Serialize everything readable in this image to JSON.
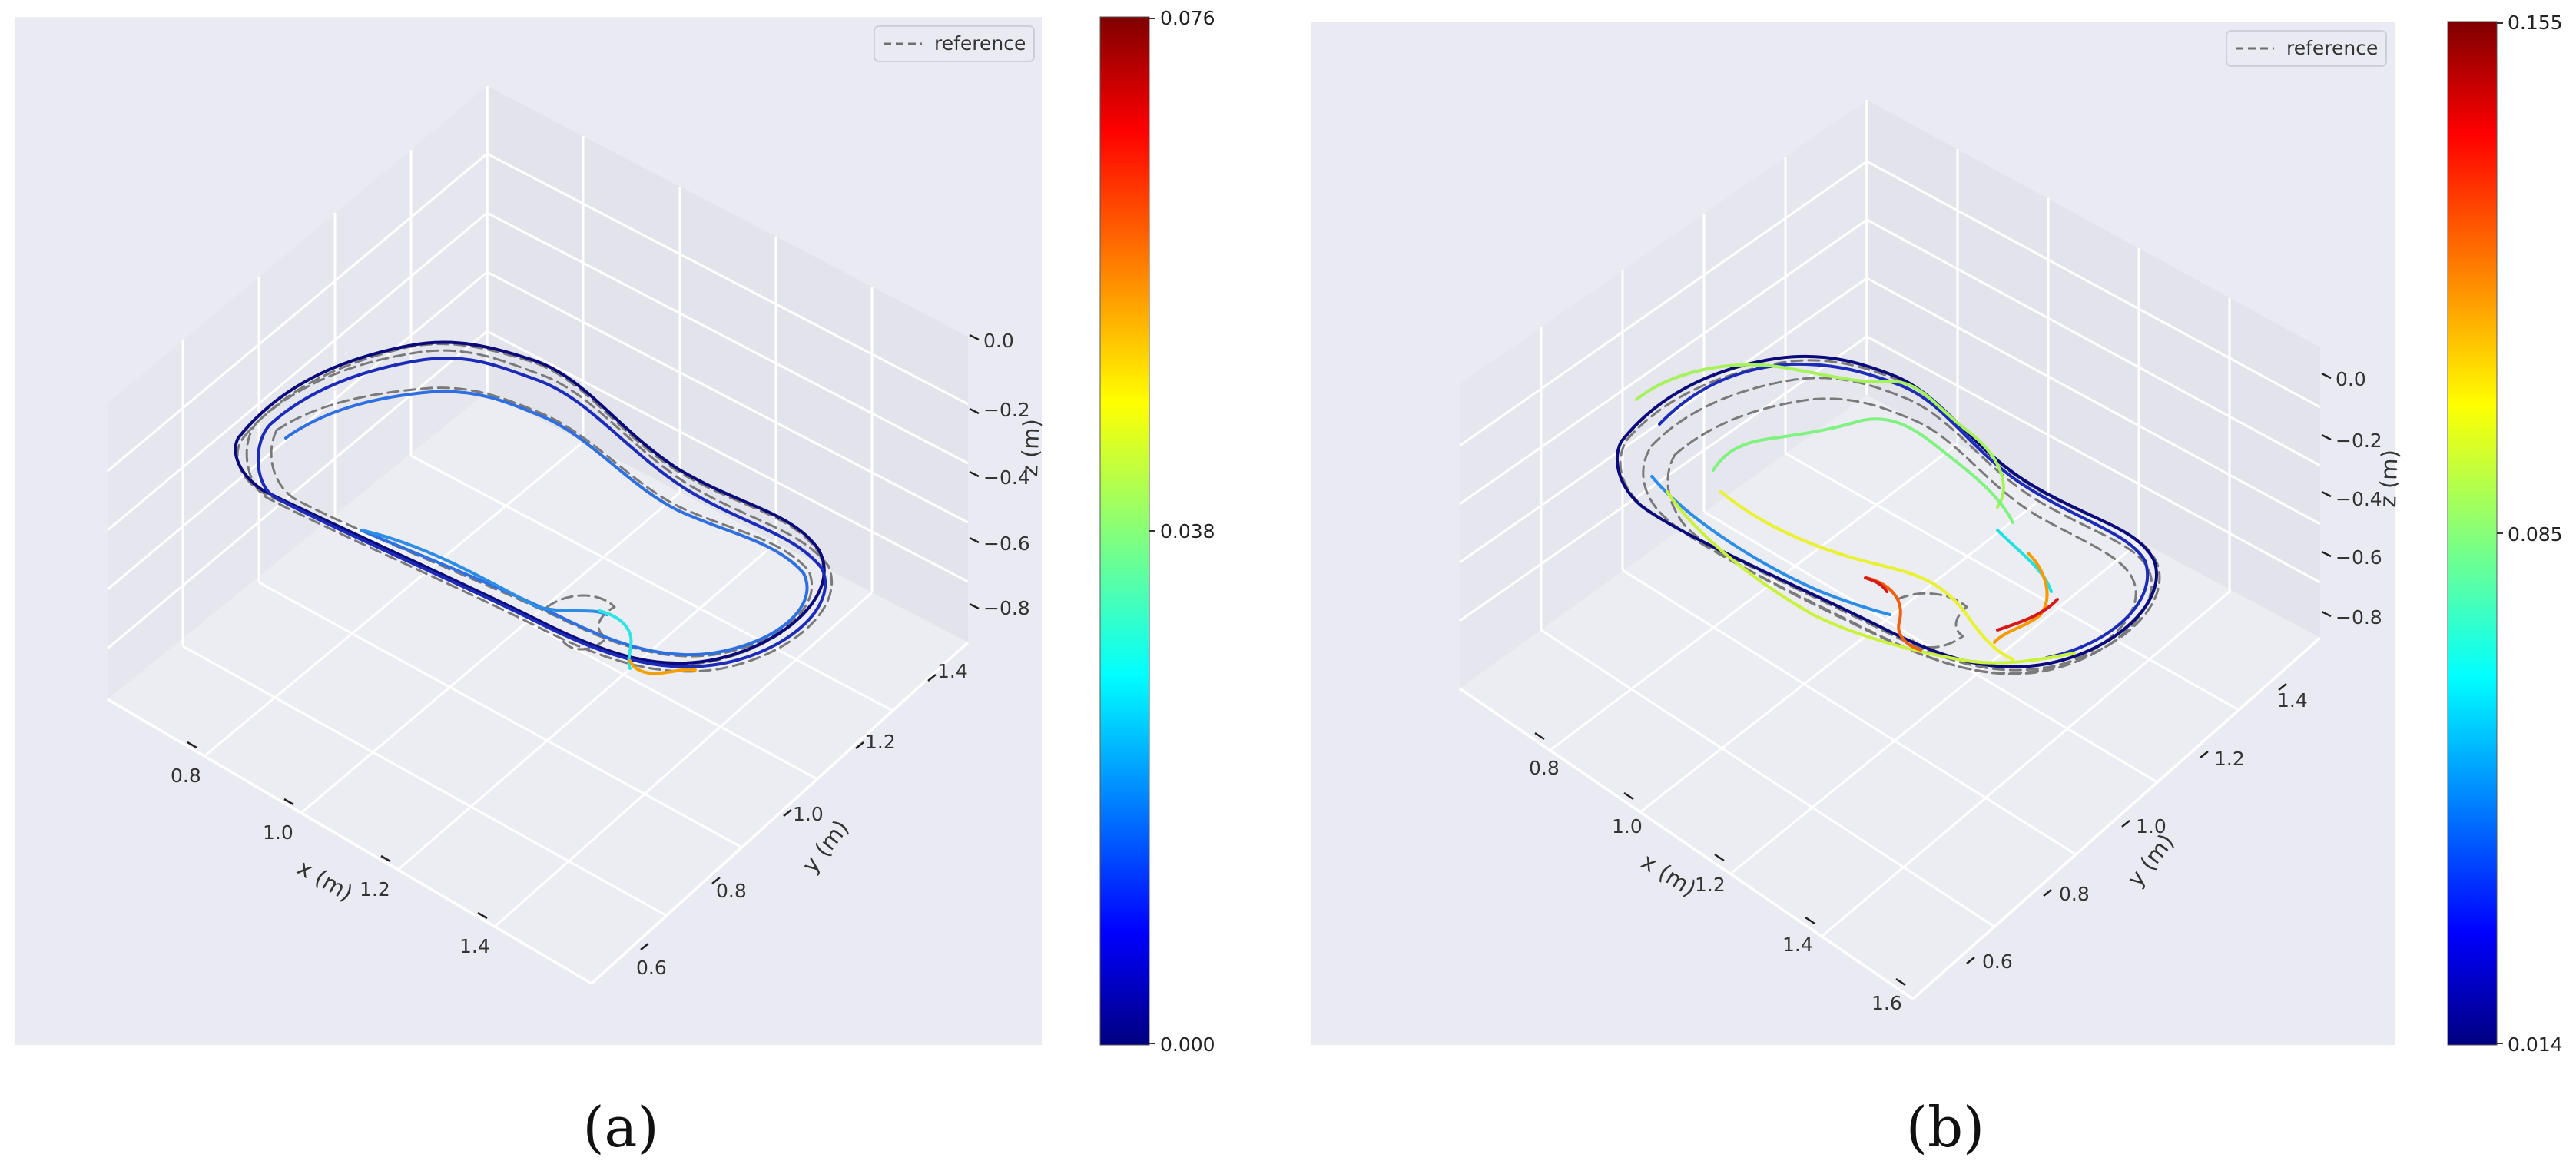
{
  "chart_data": [
    {
      "panel_label": "(a)",
      "type": "line",
      "projection": "3d",
      "legend": {
        "entries": [
          "reference"
        ],
        "placement": "top-right"
      },
      "xlabel": "x (m)",
      "ylabel": "y (m)",
      "zlabel": "z (m)",
      "x_ticks": [
        "0.8",
        "1.0",
        "1.2",
        "1.4"
      ],
      "y_ticks": [
        "0.6",
        "0.8",
        "1.0",
        "1.2",
        "1.4"
      ],
      "z_ticks": [
        "0.0",
        "−0.2",
        "−0.4",
        "−0.6",
        "−0.8"
      ],
      "colorbar": {
        "colormap": "jet",
        "range": [
          0.0,
          0.076
        ],
        "ticks": [
          "0.000",
          "0.038",
          "0.076"
        ]
      },
      "grid": true
    },
    {
      "panel_label": "(b)",
      "type": "line",
      "projection": "3d",
      "legend": {
        "entries": [
          "reference"
        ],
        "placement": "top-right"
      },
      "xlabel": "x (m)",
      "ylabel": "y (m)",
      "zlabel": "z (m)",
      "x_ticks": [
        "0.8",
        "1.0",
        "1.2",
        "1.4",
        "1.6"
      ],
      "y_ticks": [
        "0.6",
        "0.8",
        "1.0",
        "1.2",
        "1.4"
      ],
      "z_ticks": [
        "0.0",
        "−0.2",
        "−0.4",
        "−0.6",
        "−0.8"
      ],
      "colorbar": {
        "colormap": "jet",
        "range": [
          0.014,
          0.155
        ],
        "ticks": [
          "0.014",
          "0.085",
          "0.155"
        ]
      },
      "grid": true
    }
  ]
}
